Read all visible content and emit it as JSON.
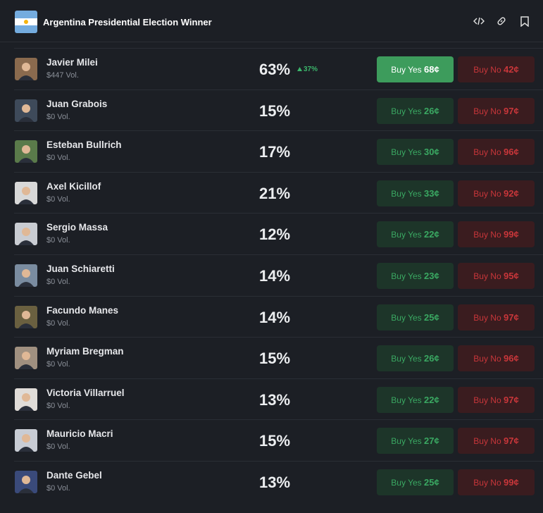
{
  "header": {
    "title": "Argentina Presidential Election Winner"
  },
  "rows": [
    {
      "name": "Javier Milei",
      "volume": "$447 Vol.",
      "chance": "63%",
      "change": "37%",
      "yes": "Buy Yes",
      "yes_price": "68¢",
      "no": "Buy No",
      "no_price": "42¢"
    },
    {
      "name": "Juan Grabois",
      "volume": "$0 Vol.",
      "chance": "15%",
      "yes": "Buy Yes",
      "yes_price": "26¢",
      "no": "Buy No",
      "no_price": "97¢"
    },
    {
      "name": "Esteban Bullrich",
      "volume": "$0 Vol.",
      "chance": "17%",
      "yes": "Buy Yes",
      "yes_price": "30¢",
      "no": "Buy No",
      "no_price": "96¢"
    },
    {
      "name": "Axel Kicillof",
      "volume": "$0 Vol.",
      "chance": "21%",
      "yes": "Buy Yes",
      "yes_price": "33¢",
      "no": "Buy No",
      "no_price": "92¢"
    },
    {
      "name": "Sergio Massa",
      "volume": "$0 Vol.",
      "chance": "12%",
      "yes": "Buy Yes",
      "yes_price": "22¢",
      "no": "Buy No",
      "no_price": "99¢"
    },
    {
      "name": "Juan Schiaretti",
      "volume": "$0 Vol.",
      "chance": "14%",
      "yes": "Buy Yes",
      "yes_price": "23¢",
      "no": "Buy No",
      "no_price": "95¢"
    },
    {
      "name": "Facundo Manes",
      "volume": "$0 Vol.",
      "chance": "14%",
      "yes": "Buy Yes",
      "yes_price": "25¢",
      "no": "Buy No",
      "no_price": "97¢"
    },
    {
      "name": "Myriam Bregman",
      "volume": "$0 Vol.",
      "chance": "15%",
      "yes": "Buy Yes",
      "yes_price": "26¢",
      "no": "Buy No",
      "no_price": "96¢"
    },
    {
      "name": "Victoria Villarruel",
      "volume": "$0 Vol.",
      "chance": "13%",
      "yes": "Buy Yes",
      "yes_price": "22¢",
      "no": "Buy No",
      "no_price": "97¢"
    },
    {
      "name": "Mauricio Macri",
      "volume": "$0 Vol.",
      "chance": "15%",
      "yes": "Buy Yes",
      "yes_price": "27¢",
      "no": "Buy No",
      "no_price": "97¢"
    },
    {
      "name": "Dante Gebel",
      "volume": "$0 Vol.",
      "chance": "13%",
      "yes": "Buy Yes",
      "yes_price": "25¢",
      "no": "Buy No",
      "no_price": "99¢"
    }
  ]
}
